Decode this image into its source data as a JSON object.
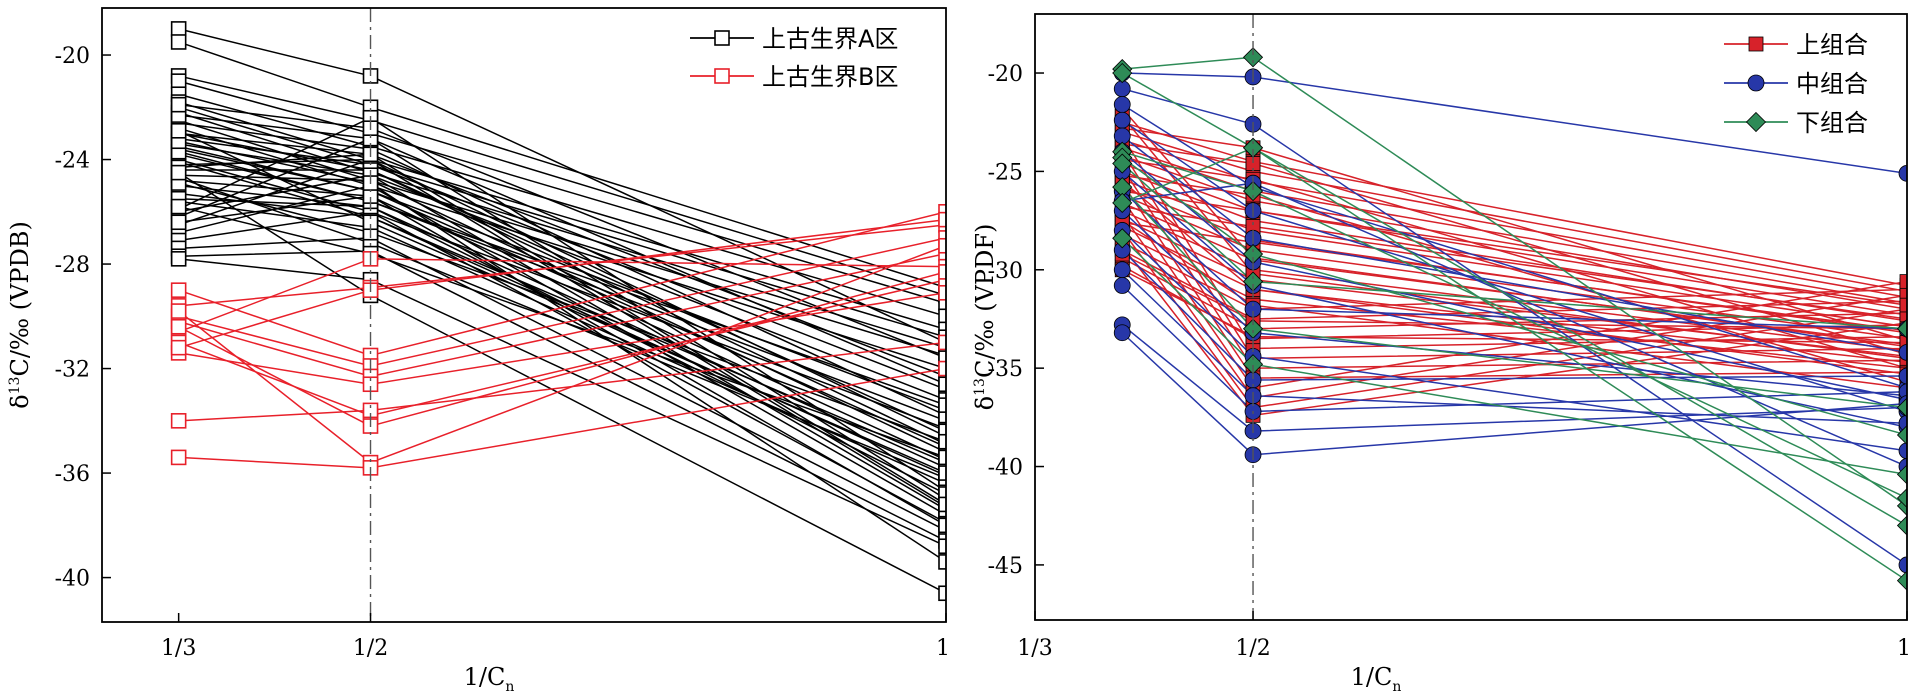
{
  "chart_data": [
    {
      "type": "line",
      "panel": "left",
      "xlabel": {
        "main": "1/C",
        "sub": "n"
      },
      "ylabel": {
        "pre": "δ",
        "sup": "13",
        "post": "C/‰ (VPDB)"
      },
      "x_ticks": [
        {
          "value": 0.3333,
          "label": "1/3"
        },
        {
          "value": 0.5,
          "label": "1/2"
        },
        {
          "value": 1,
          "label": "1"
        }
      ],
      "xlim": [
        0.2667,
        1
      ],
      "y_ticks": [
        -20,
        -24,
        -28,
        -32,
        -36,
        -40
      ],
      "ylim": [
        -41.7,
        -18.2
      ],
      "reference_line_x": 0.5,
      "colors": {
        "A": "#000000",
        "B": "#e8202a"
      },
      "legend": {
        "position": "top-right",
        "entries": [
          {
            "key": "A",
            "label": "上古生界A区",
            "marker": "square-open"
          },
          {
            "key": "B",
            "label": "上古生界B区",
            "marker": "square-open"
          }
        ]
      },
      "x_positions": [
        0.3333,
        0.5,
        1
      ],
      "series": [
        {
          "name": "上古生界A区",
          "key": "A",
          "marker": "square-open",
          "lines": [
            [
              -19.0,
              -20.8,
              -31.0
            ],
            [
              -19.5,
              -22.0,
              -28.9
            ],
            [
              -20.8,
              -22.5,
              -29.2
            ],
            [
              -21.0,
              -23.0,
              -29.5
            ],
            [
              -21.5,
              -23.5,
              -30.0
            ],
            [
              -21.8,
              -24.0,
              -30.5
            ],
            [
              -22.0,
              -24.2,
              -30.8
            ],
            [
              -22.2,
              -24.5,
              -31.2
            ],
            [
              -22.5,
              -24.8,
              -31.5
            ],
            [
              -22.8,
              -25.0,
              -32.0
            ],
            [
              -23.0,
              -23.8,
              -32.3
            ],
            [
              -23.2,
              -24.2,
              -32.8
            ],
            [
              -23.4,
              -24.6,
              -33.2
            ],
            [
              -23.6,
              -25.2,
              -33.6
            ],
            [
              -23.8,
              -25.6,
              -34.0
            ],
            [
              -24.0,
              -26.0,
              -34.3
            ],
            [
              -24.2,
              -24.0,
              -34.6
            ],
            [
              -24.4,
              -24.4,
              -34.9
            ],
            [
              -24.6,
              -24.8,
              -35.2
            ],
            [
              -24.8,
              -25.4,
              -35.5
            ],
            [
              -25.0,
              -25.8,
              -35.8
            ],
            [
              -25.3,
              -26.2,
              -36.1
            ],
            [
              -25.6,
              -26.6,
              -36.4
            ],
            [
              -25.9,
              -22.4,
              -36.7
            ],
            [
              -26.2,
              -23.2,
              -37.0
            ],
            [
              -26.5,
              -24.0,
              -37.3
            ],
            [
              -26.8,
              -25.0,
              -37.6
            ],
            [
              -27.1,
              -26.0,
              -37.9
            ],
            [
              -27.4,
              -27.0,
              -38.2
            ],
            [
              -27.7,
              -27.5,
              -38.6
            ],
            [
              -22.6,
              -23.6,
              -33.8
            ],
            [
              -23.0,
              -24.4,
              -34.4
            ],
            [
              -23.5,
              -25.2,
              -35.0
            ],
            [
              -24.1,
              -26.2,
              -35.6
            ],
            [
              -24.7,
              -27.2,
              -36.2
            ],
            [
              -25.5,
              -25.8,
              -36.8
            ],
            [
              -26.0,
              -24.6,
              -37.4
            ],
            [
              -22.3,
              -23.2,
              -32.6
            ],
            [
              -23.7,
              -25.6,
              -33.4
            ],
            [
              -24.9,
              -26.8,
              -34.8
            ],
            [
              -25.8,
              -27.6,
              -35.4
            ],
            [
              -21.9,
              -22.8,
              -31.6
            ],
            [
              -24.3,
              -23.8,
              -37.2
            ],
            [
              -26.4,
              -25.4,
              -38.0
            ],
            [
              -23.3,
              -24.9,
              -39.4
            ],
            [
              -24.5,
              -29.2,
              -40.6
            ],
            [
              -27.8,
              -28.6,
              -38.8
            ],
            [
              -22.9,
              -26.4,
              -36.0
            ]
          ]
        },
        {
          "name": "上古生界B区",
          "key": "B",
          "marker": "square-open",
          "lines": [
            [
              -29.0,
              -31.5,
              -26.0
            ],
            [
              -29.6,
              -28.9,
              -26.5
            ],
            [
              -30.0,
              -31.9,
              -27.0
            ],
            [
              -30.2,
              -32.3,
              -27.6
            ],
            [
              -30.6,
              -27.8,
              -28.1
            ],
            [
              -31.0,
              -33.8,
              -28.6
            ],
            [
              -31.4,
              -32.6,
              -29.1
            ],
            [
              -29.8,
              -35.6,
              -27.3
            ],
            [
              -30.4,
              -34.2,
              -28.3
            ],
            [
              -34.0,
              -33.6,
              -31.0
            ],
            [
              -35.4,
              -35.8,
              -32.0
            ],
            [
              -31.2,
              -29.0,
              -26.3
            ]
          ]
        }
      ]
    },
    {
      "type": "line",
      "panel": "right",
      "xlabel": {
        "main": "1/C",
        "sub": "n"
      },
      "ylabel": {
        "pre": "δ",
        "sup": "13",
        "post": "C/‰ (VPDF)"
      },
      "x_ticks": [
        {
          "value": 0.3333,
          "label": "1/3"
        },
        {
          "value": 0.5,
          "label": "1/2"
        },
        {
          "value": 1,
          "label": "1"
        }
      ],
      "xlim": [
        0.3333,
        1
      ],
      "y_ticks": [
        -20,
        -25,
        -30,
        -35,
        -40,
        -45
      ],
      "ylim": [
        -47.8,
        -17.0
      ],
      "reference_line_x": 0.5,
      "colors": {
        "upper": "#d7222a",
        "middle": "#2737a8",
        "lower": "#2e8b57"
      },
      "legend": {
        "position": "top-right",
        "entries": [
          {
            "key": "upper",
            "label": "上组合",
            "marker": "square-filled"
          },
          {
            "key": "middle",
            "label": "中组合",
            "marker": "circle-filled"
          },
          {
            "key": "lower",
            "label": "下组合",
            "marker": "diamond-filled"
          }
        ]
      },
      "x_positions": [
        0.4,
        0.5,
        1
      ],
      "series": [
        {
          "name": "上组合",
          "key": "upper",
          "marker": "square-filled",
          "lines": [
            [
              -22.5,
              -24.5,
              -30.8
            ],
            [
              -23.0,
              -25.0,
              -31.1
            ],
            [
              -23.4,
              -25.5,
              -31.4
            ],
            [
              -23.8,
              -26.0,
              -31.7
            ],
            [
              -24.2,
              -26.5,
              -32.0
            ],
            [
              -24.6,
              -27.0,
              -32.3
            ],
            [
              -25.0,
              -27.5,
              -32.6
            ],
            [
              -25.4,
              -28.0,
              -32.9
            ],
            [
              -25.8,
              -28.5,
              -33.2
            ],
            [
              -26.2,
              -29.0,
              -33.5
            ],
            [
              -26.6,
              -29.5,
              -33.8
            ],
            [
              -27.0,
              -30.0,
              -34.1
            ],
            [
              -27.4,
              -30.5,
              -34.4
            ],
            [
              -27.8,
              -31.0,
              -34.7
            ],
            [
              -28.2,
              -31.5,
              -35.0
            ],
            [
              -28.6,
              -32.0,
              -31.0
            ],
            [
              -29.0,
              -32.5,
              -31.6
            ],
            [
              -29.4,
              -33.0,
              -32.2
            ],
            [
              -29.8,
              -33.5,
              -32.8
            ],
            [
              -23.2,
              -34.0,
              -33.4
            ],
            [
              -24.0,
              -34.5,
              -34.0
            ],
            [
              -24.8,
              -35.0,
              -34.6
            ],
            [
              -25.6,
              -35.5,
              -35.2
            ],
            [
              -26.4,
              -36.0,
              -30.6
            ],
            [
              -27.2,
              -36.5,
              -31.3
            ],
            [
              -28.0,
              -37.0,
              -32.0
            ],
            [
              -28.8,
              -37.4,
              -32.7
            ],
            [
              -22.8,
              -23.8,
              -33.6
            ],
            [
              -23.6,
              -24.6,
              -34.3
            ],
            [
              -24.4,
              -25.4,
              -35.0
            ],
            [
              -25.2,
              -26.2,
              -35.7
            ],
            [
              -26.0,
              -27.0,
              -31.8
            ],
            [
              -26.8,
              -27.8,
              -32.5
            ],
            [
              -27.6,
              -28.6,
              -33.1
            ],
            [
              -21.8,
              -29.4,
              -33.9
            ],
            [
              -22.2,
              -30.2,
              -34.5
            ],
            [
              -25.5,
              -31.0,
              -35.3
            ],
            [
              -27.5,
              -31.8,
              -36.0
            ],
            [
              -29.2,
              -32.6,
              -33.0
            ],
            [
              -30.0,
              -33.4,
              -33.7
            ]
          ]
        },
        {
          "name": "中组合",
          "key": "middle",
          "marker": "circle-filled",
          "lines": [
            [
              -20.0,
              -20.2,
              -25.1
            ],
            [
              -20.8,
              -22.6,
              -45.0
            ],
            [
              -21.6,
              -25.8,
              -36.0
            ],
            [
              -22.4,
              -27.0,
              -37.2
            ],
            [
              -23.2,
              -28.4,
              -34.2
            ],
            [
              -24.0,
              -29.6,
              -36.6
            ],
            [
              -25.0,
              -30.8,
              -38.0
            ],
            [
              -26.0,
              -32.0,
              -33.0
            ],
            [
              -27.0,
              -33.2,
              -36.4
            ],
            [
              -28.0,
              -34.4,
              -39.2
            ],
            [
              -29.0,
              -35.6,
              -35.4
            ],
            [
              -30.0,
              -36.4,
              -37.8
            ],
            [
              -30.8,
              -37.2,
              -36.2
            ],
            [
              -32.8,
              -38.2,
              -37.0
            ],
            [
              -33.2,
              -39.4,
              -36.8
            ],
            [
              -26.5,
              -25.6,
              -40.0
            ]
          ]
        },
        {
          "name": "下组合",
          "key": "lower",
          "marker": "diamond-filled",
          "lines": [
            [
              -19.8,
              -19.2,
              -42.0
            ],
            [
              -20.0,
              -23.8,
              -45.8
            ],
            [
              -24.0,
              -26.0,
              -41.6
            ],
            [
              -24.3,
              -29.2,
              -38.4
            ],
            [
              -24.6,
              -30.6,
              -33.0
            ],
            [
              -25.8,
              -33.0,
              -37.0
            ],
            [
              -28.4,
              -34.8,
              -40.4
            ],
            [
              -26.6,
              -23.8,
              -43.0
            ]
          ]
        }
      ]
    }
  ]
}
